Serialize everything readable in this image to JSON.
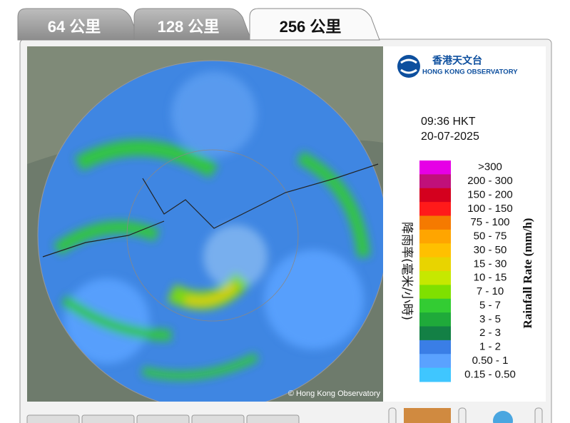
{
  "tabs": [
    "64 公里",
    "128 公里",
    "256 公里"
  ],
  "active_tab": 2,
  "logo": {
    "chinese": "香港天文台",
    "english": "HONG KONG OBSERVATORY"
  },
  "time": "09:36 HKT",
  "date": "20-07-2025",
  "copyright": "© Hong Kong Observatory",
  "legend": {
    "title_chinese": "降雨率(毫米/小時)",
    "title_english": "Rainfall Rate (mm/h)",
    "items": [
      {
        "label": ">300",
        "color": "#e600e6"
      },
      {
        "label": "200 - 300",
        "color": "#c0107a"
      },
      {
        "label": "150 - 200",
        "color": "#d4001e"
      },
      {
        "label": "100 - 150",
        "color": "#ff1a1a"
      },
      {
        "label": "75 - 100",
        "color": "#f57a00"
      },
      {
        "label": "50 - 75",
        "color": "#ffa500"
      },
      {
        "label": "30 - 50",
        "color": "#ffc000"
      },
      {
        "label": "15 - 30",
        "color": "#e8d400"
      },
      {
        "label": "10 - 15",
        "color": "#c6e800"
      },
      {
        "label": "7 - 10",
        "color": "#7fe000"
      },
      {
        "label": "5 - 7",
        "color": "#33cc33"
      },
      {
        "label": "3 - 5",
        "color": "#1faa3a"
      },
      {
        "label": "2 - 3",
        "color": "#138045"
      },
      {
        "label": "1 - 2",
        "color": "#3a7ee6"
      },
      {
        "label": "0.50 - 1",
        "color": "#5aa2ff"
      },
      {
        "label": "0.15 - 0.50",
        "color": "#3fc6ff"
      }
    ]
  }
}
